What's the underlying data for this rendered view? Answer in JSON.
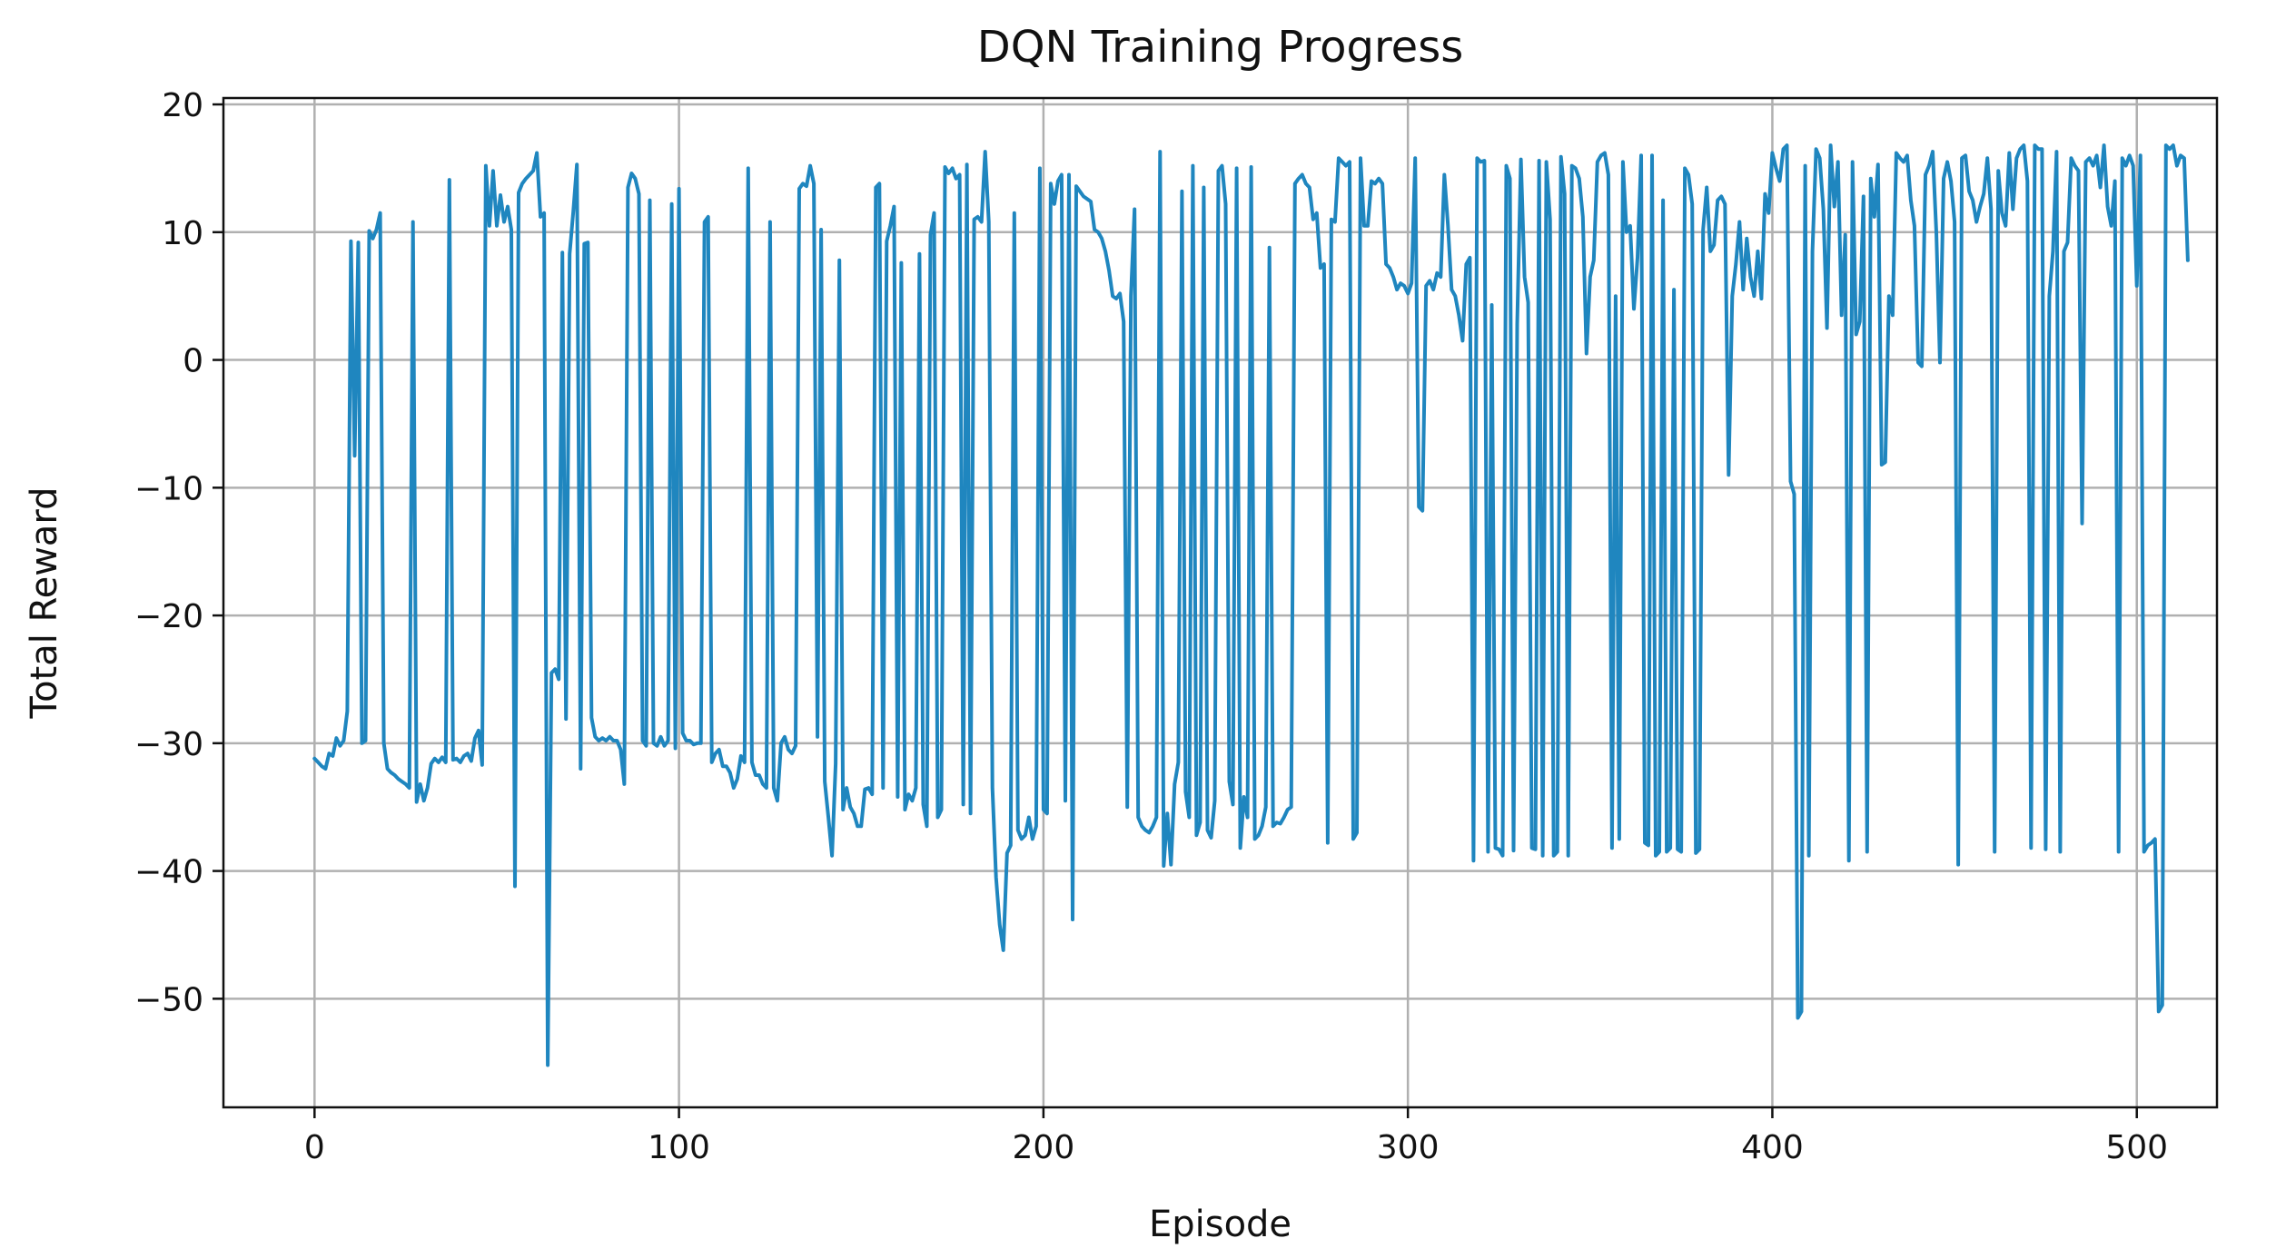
{
  "chart_data": {
    "type": "line",
    "title": "DQN Training Progress",
    "xlabel": "Episode",
    "ylabel": "Total Reward",
    "xlim": [
      -25,
      522
    ],
    "ylim": [
      -58.5,
      20.5
    ],
    "xticks": [
      0,
      100,
      200,
      300,
      400,
      500
    ],
    "yticks": [
      20,
      10,
      0,
      -10,
      -20,
      -30,
      -40,
      -50
    ],
    "xtick_labels": [
      "0",
      "100",
      "200",
      "300",
      "400",
      "500"
    ],
    "ytick_labels": [
      "20",
      "10",
      "0",
      "−10",
      "−20",
      "−30",
      "−40",
      "−50"
    ],
    "grid": true,
    "legend": "none",
    "series": [
      {
        "color": "#1f86bf",
        "x_start": 0,
        "x_step": 1,
        "values": [
          -31.2,
          -31.5,
          -31.8,
          -32.0,
          -30.8,
          -31.0,
          -29.6,
          -30.2,
          -29.8,
          -27.5,
          9.3,
          -7.5,
          9.2,
          -30.0,
          -29.8,
          10.1,
          9.5,
          10.2,
          11.5,
          -30.0,
          -32.0,
          -32.3,
          -32.5,
          -32.8,
          -33.0,
          -33.2,
          -33.5,
          10.8,
          -34.6,
          -33.2,
          -34.5,
          -33.5,
          -31.6,
          -31.2,
          -31.5,
          -31.1,
          -31.5,
          14.1,
          -31.3,
          -31.2,
          -31.5,
          -31.0,
          -30.8,
          -31.4,
          -29.6,
          -29.0,
          -31.7,
          15.2,
          10.5,
          14.8,
          10.5,
          12.9,
          10.8,
          12.0,
          10.2,
          -41.2,
          13.1,
          13.8,
          14.2,
          14.5,
          14.8,
          16.2,
          11.2,
          11.5,
          -55.2,
          -24.5,
          -24.2,
          -25.0,
          8.4,
          -28.1,
          8.3,
          11.6,
          15.3,
          -32.0,
          9.1,
          9.2,
          -28.0,
          -29.5,
          -29.8,
          -29.6,
          -29.8,
          -29.5,
          -29.8,
          -29.8,
          -30.5,
          -33.2,
          13.5,
          14.6,
          14.2,
          13.0,
          -29.8,
          -30.2,
          12.5,
          -30.0,
          -30.2,
          -29.5,
          -30.2,
          -29.8,
          12.2,
          -30.4,
          13.4,
          -29.2,
          -29.8,
          -29.8,
          -30.1,
          -30.0,
          -30.0,
          10.8,
          11.2,
          -31.5,
          -30.8,
          -30.5,
          -31.8,
          -31.8,
          -32.3,
          -33.5,
          -32.8,
          -31.0,
          -31.5,
          15.0,
          -31.5,
          -32.5,
          -32.5,
          -33.2,
          -33.5,
          10.8,
          -33.5,
          -34.5,
          -30.0,
          -29.5,
          -30.5,
          -30.8,
          -30.2,
          13.4,
          13.8,
          13.6,
          15.2,
          13.8,
          -29.5,
          10.2,
          -33.0,
          -35.8,
          -38.8,
          -31.6,
          7.8,
          -35.2,
          -33.5,
          -35.0,
          -35.5,
          -36.5,
          -36.5,
          -33.6,
          -33.5,
          -34.0,
          13.5,
          13.8,
          -33.5,
          9.3,
          10.5,
          12.0,
          -34.2,
          7.6,
          -35.2,
          -34.0,
          -34.5,
          -33.5,
          8.3,
          -34.8,
          -36.5,
          9.8,
          11.5,
          -35.8,
          -35.2,
          15.1,
          14.6,
          15.0,
          14.2,
          14.5,
          -34.8,
          15.3,
          -35.5,
          11.0,
          11.2,
          10.8,
          16.3,
          10.8,
          -33.5,
          -40.5,
          -44.2,
          -46.2,
          -38.6,
          -38.0,
          11.5,
          -36.8,
          -37.5,
          -37.2,
          -35.8,
          -37.5,
          -36.5,
          15.0,
          -35.2,
          -35.5,
          13.8,
          12.2,
          14.0,
          14.5,
          -34.5,
          14.5,
          -43.8,
          13.6,
          13.2,
          12.8,
          12.6,
          12.4,
          10.2,
          10.0,
          9.5,
          8.5,
          7.0,
          5.0,
          4.8,
          5.2,
          3.0,
          -35.0,
          5.0,
          11.8,
          -35.8,
          -36.5,
          -36.8,
          -37.0,
          -36.5,
          -35.8,
          16.3,
          -39.6,
          -35.5,
          -39.5,
          -33.2,
          -31.5,
          13.2,
          -33.8,
          -35.8,
          15.2,
          -37.2,
          -36.2,
          13.5,
          -36.8,
          -37.4,
          -34.5,
          14.8,
          15.2,
          12.2,
          -33.0,
          -34.8,
          15.0,
          -38.2,
          -34.2,
          -35.8,
          15.1,
          -37.5,
          -37.2,
          -36.5,
          -35.0,
          8.8,
          -36.5,
          -36.2,
          -36.3,
          -35.8,
          -35.2,
          -35.0,
          13.8,
          14.2,
          14.5,
          13.8,
          13.5,
          11.0,
          11.5,
          7.2,
          7.5,
          -37.8,
          11.0,
          10.8,
          15.8,
          15.5,
          15.2,
          15.5,
          -37.5,
          -37.0,
          15.8,
          10.5,
          10.5,
          14.0,
          13.8,
          14.2,
          13.8,
          7.5,
          7.2,
          6.5,
          5.5,
          6.0,
          5.8,
          5.2,
          6.0,
          15.8,
          -11.5,
          -11.8,
          5.8,
          6.2,
          5.5,
          6.8,
          6.5,
          14.5,
          10.5,
          5.5,
          5.0,
          3.5,
          1.5,
          7.5,
          8.0,
          -39.2,
          15.8,
          15.5,
          15.6,
          -38.5,
          4.3,
          -38.2,
          -38.3,
          -38.8,
          15.2,
          14.2,
          -38.4,
          2.8,
          15.7,
          6.5,
          4.5,
          -38.2,
          -38.3,
          15.6,
          -38.8,
          15.5,
          11.0,
          -38.8,
          -38.5,
          15.9,
          13.0,
          -38.8,
          15.2,
          15.0,
          14.2,
          11.2,
          0.5,
          6.5,
          7.8,
          15.5,
          16.0,
          16.2,
          14.5,
          -38.2,
          5.0,
          -37.5,
          15.5,
          10.0,
          10.5,
          4.0,
          8.0,
          16.0,
          -37.8,
          -38.0,
          16.0,
          -38.8,
          -38.5,
          12.5,
          -38.5,
          -38.2,
          5.5,
          -38.3,
          -38.5,
          15.0,
          14.5,
          12.2,
          -38.6,
          -38.3,
          10.2,
          13.5,
          8.5,
          9.0,
          12.5,
          12.8,
          12.2,
          -9.0,
          5.0,
          7.5,
          10.8,
          5.5,
          9.5,
          6.5,
          5.0,
          8.5,
          4.8,
          13.0,
          11.5,
          16.2,
          15.0,
          14.0,
          16.5,
          16.8,
          -9.5,
          -10.5,
          -51.5,
          -51.0,
          15.2,
          -38.8,
          8.5,
          16.5,
          15.8,
          11.8,
          2.5,
          16.8,
          12.0,
          15.5,
          3.5,
          9.8,
          -39.2,
          15.5,
          2.0,
          3.0,
          12.8,
          -38.5,
          14.2,
          11.2,
          15.3,
          -8.2,
          -8.0,
          5.0,
          3.5,
          16.2,
          15.8,
          15.5,
          16.0,
          12.5,
          10.5,
          -0.2,
          -0.5,
          14.5,
          15.2,
          16.3,
          10.0,
          -0.2,
          14.2,
          15.5,
          14.0,
          10.8,
          -39.5,
          15.8,
          16.0,
          13.2,
          12.5,
          10.8,
          12.0,
          13.0,
          15.8,
          11.8,
          -38.5,
          14.8,
          11.5,
          10.5,
          16.2,
          11.8,
          15.8,
          16.5,
          16.8,
          14.0,
          -38.2,
          16.8,
          16.5,
          16.5,
          -38.3,
          5.0,
          8.5,
          16.3,
          -38.5,
          8.5,
          9.2,
          15.8,
          15.2,
          14.8,
          -12.8,
          15.5,
          15.8,
          15.2,
          16.0,
          13.5,
          16.8,
          12.0,
          10.5,
          14.0,
          -38.5,
          15.8,
          15.2,
          16.0,
          15.2,
          5.8,
          16.0,
          -38.5,
          -38.0,
          -37.8,
          -37.5,
          -51.0,
          -50.5,
          16.8,
          16.5,
          16.8,
          15.2,
          16.0,
          15.8,
          7.8
        ]
      }
    ]
  }
}
